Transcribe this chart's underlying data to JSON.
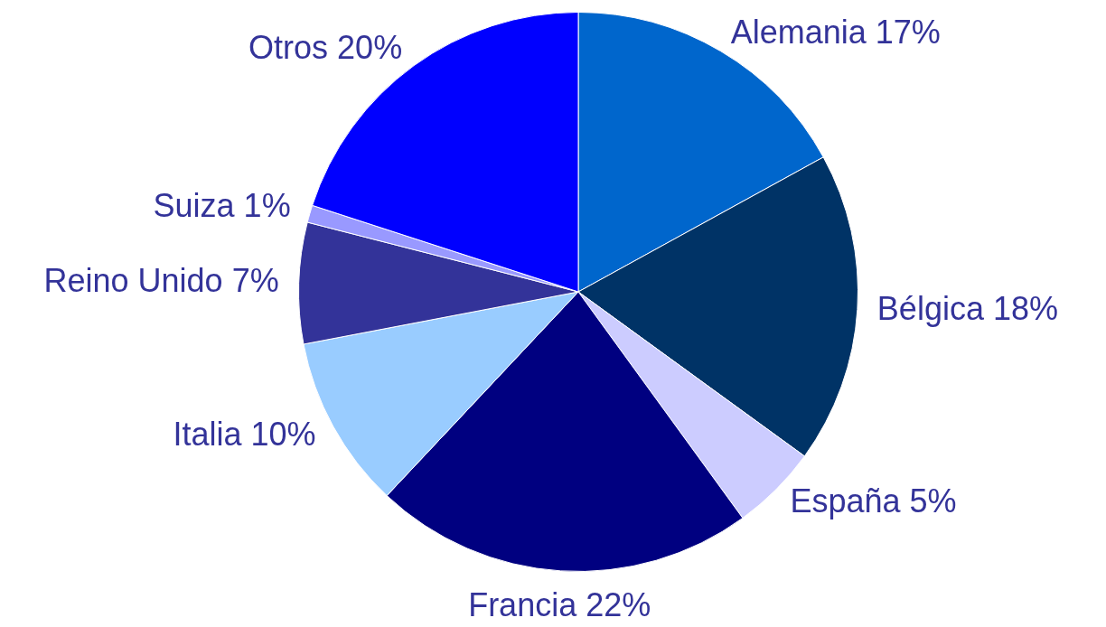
{
  "chart_data": {
    "type": "pie",
    "categories": [
      "Alemania",
      "Bélgica",
      "España",
      "Francia",
      "Italia",
      "Reino Unido",
      "Suiza",
      "Otros"
    ],
    "values": [
      17,
      18,
      5,
      22,
      10,
      7,
      1,
      20
    ],
    "value_labels": [
      "17%",
      "18%",
      "5%",
      "22%",
      "10%",
      "7%",
      "1%",
      "20%"
    ],
    "colors": [
      "#0066cc",
      "#003366",
      "#ccccff",
      "#000080",
      "#99ccff",
      "#333399",
      "#9999ff",
      "#0000ff"
    ],
    "legend": false
  }
}
